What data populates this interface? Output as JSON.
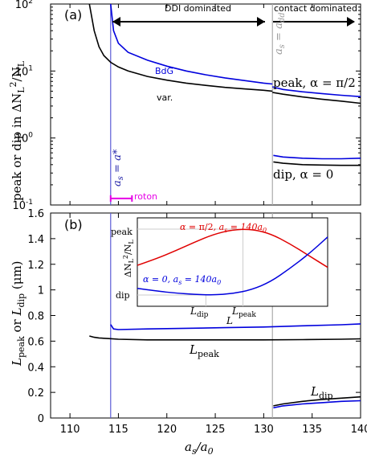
{
  "chart_data": [
    {
      "panel": "a",
      "type": "line",
      "panel_label": "(a)",
      "xlim": [
        108,
        140
      ],
      "ylim": [
        0.1,
        100
      ],
      "y_scale": "log",
      "ylabel": "peak or dip in ΔN_L²/N_L",
      "y_ticks": [
        {
          "value": 0.1,
          "base": "10",
          "exp": "-1"
        },
        {
          "value": 1,
          "base": "10",
          "exp": "0"
        },
        {
          "value": 10,
          "base": "10",
          "exp": "1"
        },
        {
          "value": 100,
          "base": "10",
          "exp": "2"
        }
      ],
      "regions": {
        "left": "DDI dominated",
        "right": "contact dominated"
      },
      "vertical_markers": [
        {
          "x": 114.2,
          "label": "a_s = a*",
          "color": "#5b5bd6"
        },
        {
          "x": 130.9,
          "label": "a_s = a_dd",
          "color": "#aaaaaa"
        }
      ],
      "roton_range": {
        "label": "roton",
        "x": [
          114.2,
          116.4
        ],
        "y": 0.125,
        "color": "#e600e6"
      },
      "series": [
        {
          "name": "BdG",
          "color": "#0000dd",
          "x": [
            114.2,
            114.5,
            115,
            116,
            118,
            120,
            122,
            124,
            126,
            128,
            130,
            130.9
          ],
          "y": [
            100,
            40,
            26,
            19,
            14.5,
            11.8,
            10,
            8.8,
            7.9,
            7.2,
            6.6,
            6.4
          ]
        },
        {
          "name": "BdG",
          "color": "#0000dd",
          "x": [
            130.9,
            132,
            134,
            136,
            138,
            140
          ],
          "y": [
            5.8,
            5.3,
            4.9,
            4.6,
            4.35,
            4.15
          ]
        },
        {
          "name": "var.",
          "color": "#000000",
          "x": [
            112,
            112.5,
            113,
            113.5,
            114.2,
            115,
            116,
            118,
            120,
            122,
            124,
            126,
            128,
            130,
            130.9
          ],
          "y": [
            100,
            40,
            23,
            17,
            13.5,
            11.5,
            10,
            8.3,
            7.3,
            6.6,
            6.1,
            5.7,
            5.4,
            5.15,
            5.0
          ]
        },
        {
          "name": "var.",
          "color": "#000000",
          "x": [
            130.9,
            132,
            134,
            136,
            138,
            140
          ],
          "y": [
            4.8,
            4.5,
            4.1,
            3.8,
            3.55,
            3.3
          ]
        },
        {
          "name": "BdG dip",
          "color": "#0000dd",
          "x": [
            131,
            132,
            134,
            136,
            138,
            140
          ],
          "y": [
            0.55,
            0.52,
            0.5,
            0.49,
            0.49,
            0.5
          ]
        },
        {
          "name": "var. dip",
          "color": "#000000",
          "x": [
            131,
            132,
            134,
            136,
            138,
            140
          ],
          "y": [
            0.44,
            0.42,
            0.4,
            0.395,
            0.39,
            0.39
          ]
        }
      ],
      "labels": {
        "bdg": "BdG",
        "var": "var.",
        "peak": "peak, α = π/2",
        "dip": "dip, α = 0"
      }
    },
    {
      "panel": "b",
      "type": "line",
      "panel_label": "(b)",
      "xlim": [
        108,
        140
      ],
      "ylim": [
        0,
        1.6
      ],
      "xlabel": "a_s/a_0",
      "ylabel": "L_peak or L_dip (μm)",
      "x_ticks": [
        "110",
        "115",
        "120",
        "125",
        "130",
        "135",
        "140"
      ],
      "y_ticks": [
        "0",
        "0.2",
        "0.4",
        "0.6",
        "0.8",
        "1",
        "1.2",
        "1.4",
        "1.6"
      ],
      "series": [
        {
          "name": "L_peak BdG",
          "color": "#0000dd",
          "x": [
            114.2,
            114.5,
            115,
            118,
            122,
            126,
            130,
            134,
            138,
            140
          ],
          "y": [
            0.73,
            0.695,
            0.69,
            0.695,
            0.7,
            0.705,
            0.71,
            0.72,
            0.728,
            0.735
          ]
        },
        {
          "name": "L_peak var.",
          "color": "#000000",
          "x": [
            112,
            112.5,
            113,
            114,
            115,
            118,
            122,
            126,
            130,
            134,
            138,
            140
          ],
          "y": [
            0.64,
            0.63,
            0.625,
            0.62,
            0.615,
            0.61,
            0.61,
            0.61,
            0.61,
            0.612,
            0.615,
            0.618
          ]
        },
        {
          "name": "L_dip BdG",
          "color": "#0000dd",
          "x": [
            131,
            132,
            134,
            136,
            138,
            140
          ],
          "y": [
            0.08,
            0.095,
            0.11,
            0.12,
            0.13,
            0.135
          ]
        },
        {
          "name": "L_dip var.",
          "color": "#000000",
          "x": [
            131,
            132,
            134,
            136,
            138,
            140
          ],
          "y": [
            0.095,
            0.11,
            0.13,
            0.145,
            0.155,
            0.165
          ]
        }
      ],
      "labels": {
        "lpeak": "L_peak",
        "ldip": "L_dip"
      }
    },
    {
      "panel": "inset",
      "type": "line",
      "xlabel": "L",
      "ylabel": "ΔN_L²/N_L",
      "x_ticks": [
        "L_dip",
        "L_peak"
      ],
      "y_ticks": [
        "dip",
        "peak"
      ],
      "series": [
        {
          "name": "α = π/2, a_s = 140a_0",
          "color": "#e00000",
          "x": [
            0,
            1,
            2,
            3,
            4,
            5,
            6,
            7,
            8,
            9,
            10
          ],
          "y": [
            0.45,
            0.55,
            0.67,
            0.8,
            0.92,
            0.99,
            1.0,
            0.93,
            0.78,
            0.6,
            0.42
          ]
        },
        {
          "name": "α = 0, a_s = 140a_0",
          "color": "#0000dd",
          "x": [
            0,
            1,
            2,
            3,
            4,
            5,
            6,
            7,
            8,
            9,
            10
          ],
          "y": [
            0.1,
            0.06,
            0.03,
            0.01,
            0.0,
            0.02,
            0.08,
            0.2,
            0.4,
            0.62,
            0.88
          ]
        }
      ],
      "labels": {
        "red": "α = π/2, a_s = 140a_0",
        "blue": "α = 0, a_s = 140a_0"
      }
    }
  ]
}
